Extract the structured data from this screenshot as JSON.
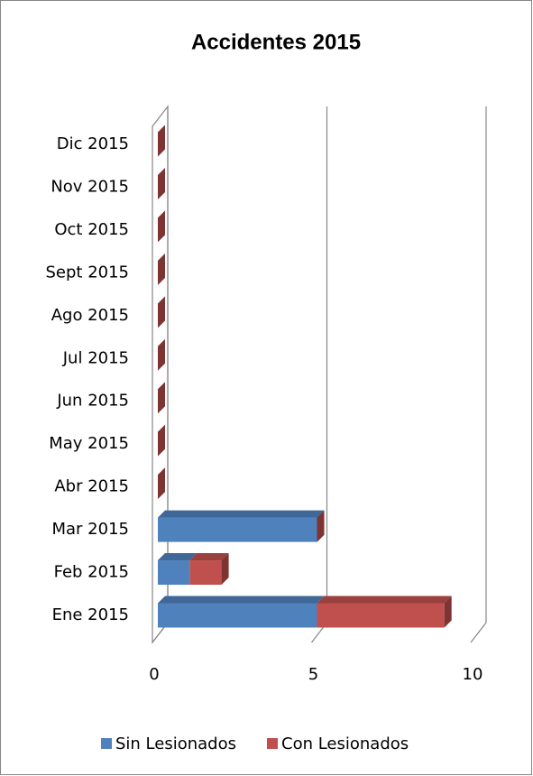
{
  "chart_data": {
    "type": "bar",
    "orientation": "horizontal",
    "stacked": true,
    "3d": true,
    "title": "Accidentes 2015",
    "categories": [
      "Ene 2015",
      "Feb 2015",
      "Mar 2015",
      "Abr 2015",
      "May 2015",
      "Jun 2015",
      "Jul 2015",
      "Ago 2015",
      "Sept 2015",
      "Oct 2015",
      "Nov 2015",
      "Dic 2015"
    ],
    "series": [
      {
        "name": "Sin Lesionados",
        "color": "#4f81bd",
        "values": [
          5,
          1,
          5,
          0,
          0,
          0,
          0,
          0,
          0,
          0,
          0,
          0
        ]
      },
      {
        "name": "Con Lesionados",
        "color": "#c0504d",
        "values": [
          4,
          1,
          0,
          0,
          0,
          0,
          0,
          0,
          0,
          0,
          0,
          0
        ]
      }
    ],
    "xlim": [
      0,
      10
    ],
    "xticks": [
      0,
      5,
      10
    ],
    "grid": true,
    "legend": "bottom"
  }
}
